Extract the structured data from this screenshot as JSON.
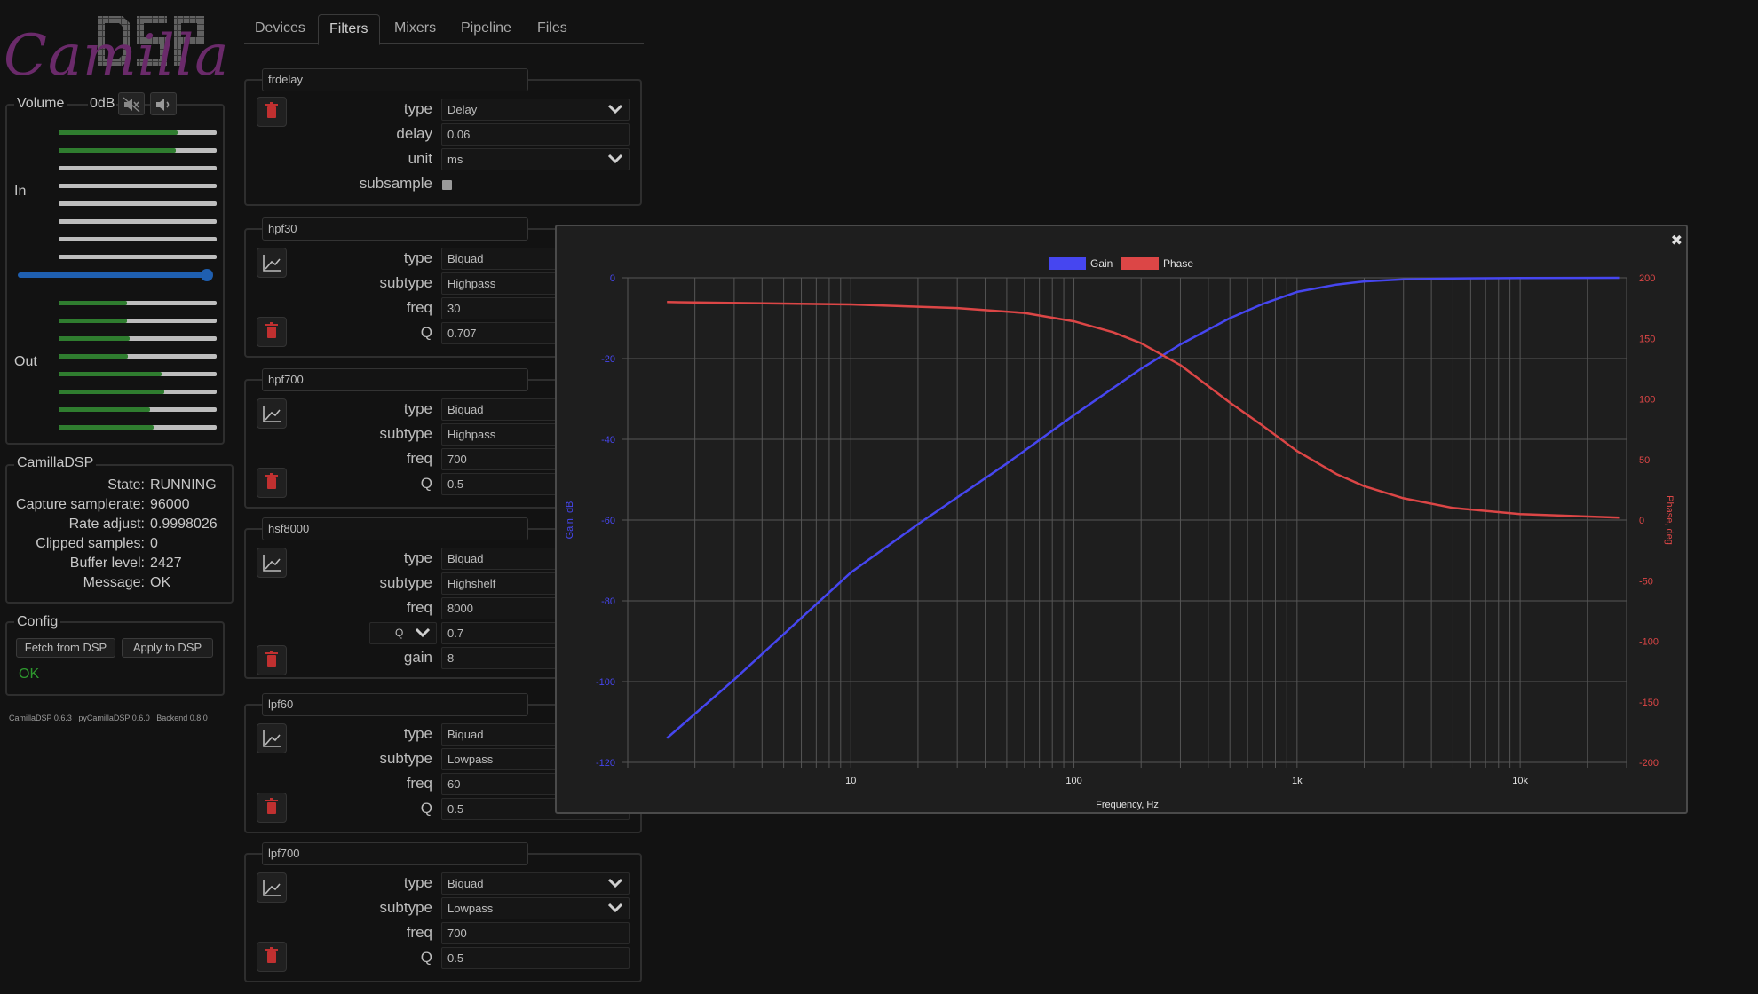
{
  "logo": {
    "text_script": "Camilla",
    "text_block": "DSP"
  },
  "tabs": [
    "Devices",
    "Filters",
    "Mixers",
    "Pipeline",
    "Files"
  ],
  "active_tab": "Filters",
  "volume": {
    "title": "Volume",
    "value": "0dB",
    "in_label": "In",
    "out_label": "Out",
    "slider_level": 1.0
  },
  "meters": {
    "in": [
      0.75,
      0.74,
      0.0,
      0.0,
      0.0,
      0.0,
      0.0,
      0.0
    ],
    "out": [
      0.43,
      0.43,
      0.45,
      0.44,
      0.65,
      0.67,
      0.58,
      0.6
    ]
  },
  "status": {
    "title": "CamillaDSP",
    "rows": [
      {
        "key": "State:",
        "value": "RUNNING"
      },
      {
        "key": "Capture samplerate:",
        "value": "96000"
      },
      {
        "key": "Rate adjust:",
        "value": "0.9998026"
      },
      {
        "key": "Clipped samples:",
        "value": "0"
      },
      {
        "key": "Buffer level:",
        "value": "2427"
      },
      {
        "key": "Message:",
        "value": "OK"
      }
    ]
  },
  "config": {
    "title": "Config",
    "fetch_label": "Fetch from DSP",
    "apply_label": "Apply to DSP",
    "result": "OK"
  },
  "versions": "CamillaDSP 0.6.3   pyCamillaDSP 0.6.0   Backend 0.8.0",
  "filters": [
    {
      "name": "frdelay",
      "params": [
        {
          "label": "type",
          "value": "Delay",
          "dropdown": true
        },
        {
          "label": "delay",
          "value": "0.06"
        },
        {
          "label": "unit",
          "value": "ms",
          "dropdown": true
        },
        {
          "label": "subsample",
          "checkbox": true
        }
      ]
    },
    {
      "name": "hpf30",
      "params": [
        {
          "label": "type",
          "value": "Biquad"
        },
        {
          "label": "subtype",
          "value": "Highpass"
        },
        {
          "label": "freq",
          "value": "30"
        },
        {
          "label": "Q",
          "value": "0.707"
        }
      ]
    },
    {
      "name": "hpf700",
      "params": [
        {
          "label": "type",
          "value": "Biquad"
        },
        {
          "label": "subtype",
          "value": "Highpass"
        },
        {
          "label": "freq",
          "value": "700"
        },
        {
          "label": "Q",
          "value": "0.5"
        }
      ]
    },
    {
      "name": "hsf8000",
      "params": [
        {
          "label": "type",
          "value": "Biquad"
        },
        {
          "label": "subtype",
          "value": "Highshelf"
        },
        {
          "label": "freq",
          "value": "8000"
        },
        {
          "label": "Q",
          "value": "0.7",
          "select_label": "Q"
        },
        {
          "label": "gain",
          "value": "8"
        }
      ]
    },
    {
      "name": "lpf60",
      "params": [
        {
          "label": "type",
          "value": "Biquad"
        },
        {
          "label": "subtype",
          "value": "Lowpass"
        },
        {
          "label": "freq",
          "value": "60"
        },
        {
          "label": "Q",
          "value": "0.5"
        }
      ]
    },
    {
      "name": "lpf700",
      "params": [
        {
          "label": "type",
          "value": "Biquad",
          "dropdown": true
        },
        {
          "label": "subtype",
          "value": "Lowpass",
          "dropdown": true
        },
        {
          "label": "freq",
          "value": "700"
        },
        {
          "label": "Q",
          "value": "0.5"
        }
      ]
    }
  ],
  "colors": {
    "gain": "#4646f0",
    "phase": "#dc4646",
    "meter_green": "#2f7d2f",
    "slider_blue": "#1f5fb0"
  },
  "close_glyph": "✖",
  "chart_data": {
    "type": "line",
    "title": "",
    "xlabel": "Frequency, Hz",
    "ylabel": "Gain, dB",
    "y2label": "Phase, deg",
    "xscale": "log",
    "xlim": [
      1,
      30000
    ],
    "ylim": [
      -120,
      0
    ],
    "y2lim": [
      -200,
      200
    ],
    "xticks": [
      {
        "v": 10,
        "label": "10"
      },
      {
        "v": 100,
        "label": "100"
      },
      {
        "v": 1000,
        "label": "1k"
      },
      {
        "v": 10000,
        "label": "10k"
      }
    ],
    "yticks": [
      0,
      -20,
      -40,
      -60,
      -80,
      -100,
      -120
    ],
    "y2ticks": [
      200,
      150,
      100,
      50,
      0,
      -50,
      -100,
      -150,
      -200
    ],
    "legend": "top-center",
    "grid": true,
    "series": [
      {
        "name": "Gain",
        "axis": "left",
        "x": [
          1.5,
          3,
          10,
          20,
          50,
          100,
          200,
          300,
          500,
          700,
          1000,
          1500,
          2000,
          3000,
          5000,
          10000,
          28000
        ],
        "y": [
          -114,
          -99.5,
          -73,
          -61,
          -46,
          -34,
          -22.5,
          -16.5,
          -10,
          -6.5,
          -3.5,
          -1.7,
          -0.9,
          -0.4,
          -0.15,
          -0.05,
          0
        ]
      },
      {
        "name": "Phase",
        "axis": "right",
        "x": [
          1.5,
          10,
          30,
          60,
          100,
          150,
          200,
          300,
          500,
          700,
          1000,
          1500,
          2000,
          3000,
          5000,
          10000,
          28000
        ],
        "y": [
          180,
          178,
          175,
          171,
          164,
          155,
          146,
          128,
          97,
          78,
          57,
          38,
          28,
          18,
          10,
          5,
          2
        ]
      }
    ]
  }
}
